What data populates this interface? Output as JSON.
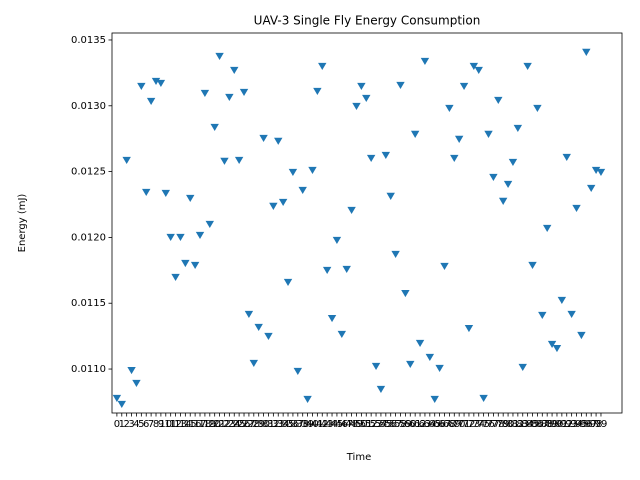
{
  "chart_data": {
    "type": "scatter",
    "title": "UAV-3 Single Fly Energy Consumption",
    "x_label": "Time",
    "y_label": "Energy (mJ)",
    "x": [
      0,
      1,
      2,
      3,
      4,
      5,
      6,
      7,
      8,
      9,
      10,
      11,
      12,
      13,
      14,
      15,
      16,
      17,
      18,
      19,
      20,
      21,
      22,
      23,
      24,
      25,
      26,
      27,
      28,
      29,
      30,
      31,
      32,
      33,
      34,
      35,
      36,
      37,
      38,
      39,
      40,
      41,
      42,
      43,
      44,
      45,
      46,
      47,
      48,
      49,
      50,
      51,
      52,
      53,
      54,
      55,
      56,
      57,
      58,
      59,
      60,
      61,
      62,
      63,
      64,
      65,
      66,
      67,
      68,
      69,
      70,
      71,
      72,
      73,
      74,
      75,
      76,
      77,
      78,
      79,
      80,
      81,
      82,
      83,
      84,
      85,
      86,
      87,
      88,
      89,
      90,
      91,
      92,
      93,
      94,
      95,
      96,
      97,
      98,
      99
    ],
    "values": [
      0.01078,
      0.010734,
      0.012588,
      0.010992,
      0.010894,
      0.01315,
      0.012345,
      0.013036,
      0.013188,
      0.013173,
      0.012337,
      0.012003,
      0.011699,
      0.012003,
      0.011805,
      0.012299,
      0.01179,
      0.012018,
      0.013097,
      0.012102,
      0.012839,
      0.013378,
      0.012581,
      0.013067,
      0.013272,
      0.012588,
      0.013105,
      0.011418,
      0.011046,
      0.011319,
      0.012755,
      0.011251,
      0.012239,
      0.012733,
      0.012269,
      0.011661,
      0.012497,
      0.010985,
      0.01236,
      0.010772,
      0.012512,
      0.013112,
      0.013302,
      0.011752,
      0.011387,
      0.01198,
      0.011266,
      0.01176,
      0.012208,
      0.012998,
      0.01315,
      0.013059,
      0.012603,
      0.011023,
      0.010848,
      0.012626,
      0.012315,
      0.011874,
      0.013158,
      0.011577,
      0.011038,
      0.012786,
      0.011198,
      0.01334,
      0.011091,
      0.010772,
      0.011008,
      0.011783,
      0.012983,
      0.012603,
      0.012748,
      0.01315,
      0.011311,
      0.013302,
      0.013272,
      0.01078,
      0.012786,
      0.012459,
      0.013044,
      0.012277,
      0.012406,
      0.012573,
      0.012831,
      0.011015,
      0.013302,
      0.01179,
      0.012983,
      0.01141,
      0.012071,
      0.01119,
      0.011159,
      0.011524,
      0.012611,
      0.011418,
      0.012223,
      0.011258,
      0.013409,
      0.012375,
      0.012512,
      0.012497
    ],
    "color": "#1f77b4",
    "marker": "triangle-down",
    "xlim": [
      -1,
      103.3
    ],
    "ylim": [
      0.010666,
      0.013553
    ],
    "xticks": [
      0,
      1,
      2,
      3,
      4,
      5,
      6,
      7,
      8,
      9,
      10,
      11,
      12,
      13,
      14,
      15,
      16,
      17,
      18,
      19,
      20,
      21,
      22,
      23,
      24,
      25,
      26,
      27,
      28,
      29,
      30,
      31,
      32,
      33,
      34,
      35,
      36,
      37,
      38,
      39,
      40,
      41,
      42,
      43,
      44,
      45,
      46,
      47,
      48,
      49,
      50,
      51,
      52,
      53,
      54,
      55,
      56,
      57,
      58,
      59,
      60,
      61,
      62,
      63,
      64,
      65,
      66,
      67,
      68,
      69,
      70,
      71,
      72,
      73,
      74,
      75,
      76,
      77,
      78,
      79,
      80,
      81,
      82,
      83,
      84,
      85,
      86,
      87,
      88,
      89,
      90,
      91,
      92,
      93,
      94,
      95,
      96,
      97,
      98,
      99
    ],
    "yticks": [
      {
        "value": 0.011,
        "label": "0.0110"
      },
      {
        "value": 0.0115,
        "label": "0.0115"
      },
      {
        "value": 0.012,
        "label": "0.0120"
      },
      {
        "value": 0.0125,
        "label": "0.0125"
      },
      {
        "value": 0.013,
        "label": "0.0130"
      },
      {
        "value": 0.0135,
        "label": "0.0135"
      }
    ],
    "grid": false
  }
}
